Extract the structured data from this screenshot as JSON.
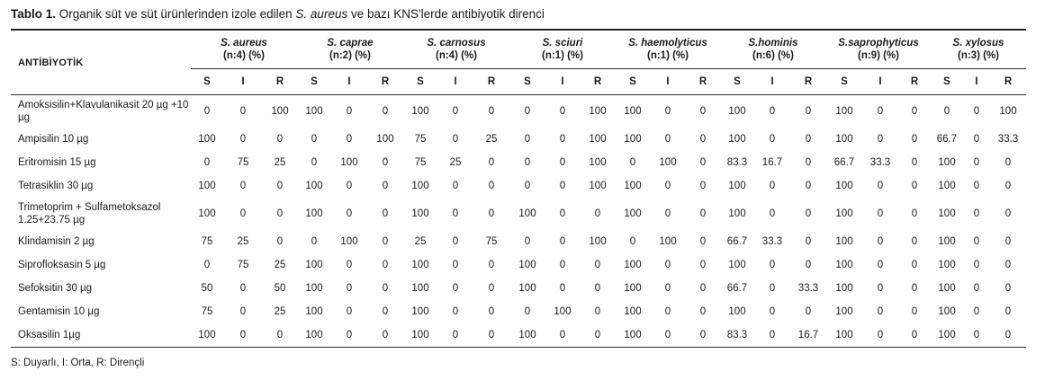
{
  "caption": {
    "prefix": "Tablo 1.",
    "text_before": " Organik süt ve süt ürünlerinden izole edilen ",
    "species_italic": "S. aureus",
    "text_after": " ve bazı KNS'lerde antibiyotik direnci"
  },
  "table": {
    "antibiotic_header": "ANTİBİYOTİK",
    "species": [
      {
        "name": "S. aureus",
        "n": "(n:4) (%)"
      },
      {
        "name": "S. caprae",
        "n": "(n:2) (%)"
      },
      {
        "name": "S. carnosus",
        "n": "(n:4) (%)"
      },
      {
        "name": "S. sciuri",
        "n": "(n:1) (%)"
      },
      {
        "name": "S. haemolyticus",
        "n": "(n:1) (%)"
      },
      {
        "name": "S.hominis",
        "n": "(n:6) (%)"
      },
      {
        "name": "S.saprophyticus",
        "n": "(n:9) (%)"
      },
      {
        "name": "S. xylosus",
        "n": "(n:3) (%)"
      }
    ],
    "sir": [
      "S",
      "I",
      "R"
    ],
    "rows": [
      {
        "antibiotic": "Amoksisilin+Klavulanikasit 20 µg +10 µg",
        "values": [
          "0",
          "0",
          "100",
          "100",
          "0",
          "0",
          "100",
          "0",
          "0",
          "0",
          "0",
          "100",
          "100",
          "0",
          "0",
          "100",
          "0",
          "0",
          "100",
          "0",
          "0",
          "0",
          "0",
          "100"
        ]
      },
      {
        "antibiotic": "Ampisilin 10 µg",
        "values": [
          "100",
          "0",
          "0",
          "0",
          "0",
          "100",
          "75",
          "0",
          "25",
          "0",
          "0",
          "100",
          "100",
          "0",
          "0",
          "100",
          "0",
          "0",
          "100",
          "0",
          "0",
          "66.7",
          "0",
          "33.3"
        ]
      },
      {
        "antibiotic": "Eritromisin 15 µg",
        "values": [
          "0",
          "75",
          "25",
          "0",
          "100",
          "0",
          "75",
          "25",
          "0",
          "0",
          "0",
          "100",
          "0",
          "100",
          "0",
          "83.3",
          "16.7",
          "0",
          "66.7",
          "33.3",
          "0",
          "100",
          "0",
          "0"
        ]
      },
      {
        "antibiotic": "Tetrasiklin 30 µg",
        "values": [
          "100",
          "0",
          "0",
          "100",
          "0",
          "0",
          "100",
          "0",
          "0",
          "0",
          "0",
          "100",
          "100",
          "0",
          "0",
          "100",
          "0",
          "0",
          "100",
          "0",
          "0",
          "100",
          "0",
          "0"
        ]
      },
      {
        "antibiotic": "Trimetoprim + Sulfametoksazol 1.25+23.75 µg",
        "values": [
          "100",
          "0",
          "0",
          "100",
          "0",
          "0",
          "100",
          "0",
          "0",
          "100",
          "0",
          "0",
          "100",
          "0",
          "0",
          "100",
          "0",
          "0",
          "100",
          "0",
          "0",
          "100",
          "0",
          "0"
        ]
      },
      {
        "antibiotic": "Klindamisin 2 µg",
        "values": [
          "75",
          "25",
          "0",
          "0",
          "100",
          "0",
          "25",
          "0",
          "75",
          "0",
          "0",
          "100",
          "0",
          "100",
          "0",
          "66.7",
          "33.3",
          "0",
          "100",
          "0",
          "0",
          "100",
          "0",
          "0"
        ]
      },
      {
        "antibiotic": "Siprofloksasin 5 µg",
        "values": [
          "0",
          "75",
          "25",
          "100",
          "0",
          "0",
          "100",
          "0",
          "0",
          "100",
          "0",
          "0",
          "100",
          "0",
          "0",
          "100",
          "0",
          "0",
          "100",
          "0",
          "0",
          "100",
          "0",
          "0"
        ]
      },
      {
        "antibiotic": "Sefoksitin 30 µg",
        "values": [
          "50",
          "0",
          "50",
          "100",
          "0",
          "0",
          "100",
          "0",
          "0",
          "100",
          "0",
          "0",
          "100",
          "0",
          "0",
          "66.7",
          "0",
          "33.3",
          "100",
          "0",
          "0",
          "100",
          "0",
          "0"
        ]
      },
      {
        "antibiotic": "Gentamisin 10 µg",
        "values": [
          "75",
          "0",
          "25",
          "100",
          "0",
          "0",
          "100",
          "0",
          "0",
          "0",
          "100",
          "0",
          "100",
          "0",
          "0",
          "100",
          "0",
          "0",
          "100",
          "0",
          "0",
          "100",
          "0",
          "0"
        ]
      },
      {
        "antibiotic": "Oksasilin 1µg",
        "values": [
          "100",
          "0",
          "0",
          "100",
          "0",
          "0",
          "100",
          "0",
          "0",
          "100",
          "0",
          "0",
          "100",
          "0",
          "0",
          "83.3",
          "0",
          "16.7",
          "100",
          "0",
          "0",
          "100",
          "0",
          "0"
        ]
      }
    ]
  },
  "footnote": "S: Duyarlı, I: Orta, R: Dirençli"
}
